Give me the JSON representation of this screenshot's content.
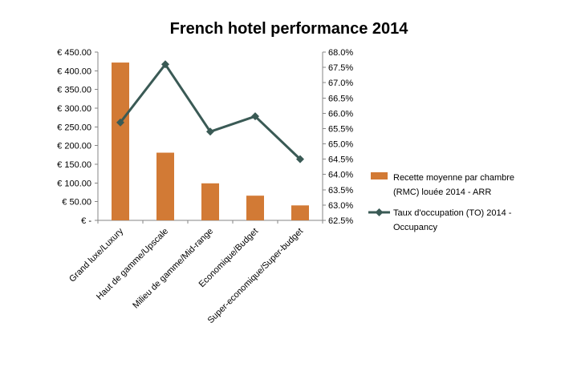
{
  "chart_data": {
    "type": "bar",
    "title": "French hotel performance 2014",
    "categories": [
      "Grand luxe/Luxury",
      "Haut de gamme/Upscale",
      "Milieu de gamme/Mid-range",
      "Economique/Budget",
      "Super-economique/Super-budget"
    ],
    "series": [
      {
        "name": "Recette moyenne par chambre (RMC) louée 2014 - ARR",
        "type": "bar",
        "axis": "left",
        "color": "#d27a35",
        "values": [
          422,
          181,
          99,
          66,
          40
        ]
      },
      {
        "name": "Taux d'occupation (TO) 2014 - Occupancy",
        "type": "line",
        "axis": "right",
        "color": "#3a5a55",
        "marker": "diamond",
        "values": [
          65.7,
          67.6,
          65.4,
          65.9,
          64.5
        ]
      }
    ],
    "y_left": {
      "min": 0,
      "max": 450,
      "ticks": [
        "€ -",
        "€ 50.00",
        "€ 100.00",
        "€ 150.00",
        "€ 200.00",
        "€ 250.00",
        "€ 300.00",
        "€ 350.00",
        "€ 400.00",
        "€ 450.00"
      ]
    },
    "y_right": {
      "min": 62.5,
      "max": 68.0,
      "ticks": [
        "62.5%",
        "63.0%",
        "63.5%",
        "64.0%",
        "64.5%",
        "65.0%",
        "65.5%",
        "66.0%",
        "66.5%",
        "67.0%",
        "67.5%",
        "68.0%"
      ]
    },
    "legend": {
      "placement": "right",
      "entries": [
        {
          "line1": "Recette moyenne par chambre",
          "line2": "(RMC) louée 2014 - ARR"
        },
        {
          "line1": "Taux d'occupation (TO) 2014 -",
          "line2": "Occupancy"
        }
      ]
    },
    "grid": false,
    "xlabel": "",
    "ylabel": ""
  }
}
